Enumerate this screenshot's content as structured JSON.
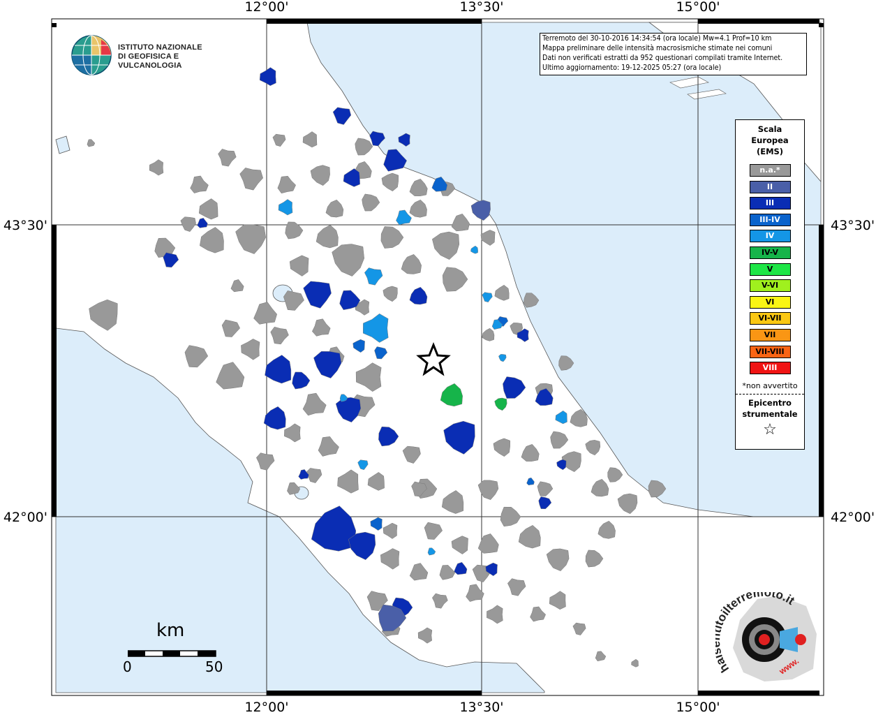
{
  "map": {
    "top_labels": [
      "12°00'",
      "13°30'",
      "15°00'"
    ],
    "bottom_labels": [
      "12°00'",
      "13°30'",
      "15°00'"
    ],
    "left_labels": [
      "43°30'",
      "42°00'"
    ],
    "right_labels": [
      "43°30'",
      "42°00'"
    ]
  },
  "logo": {
    "line1": "ISTITUTO NAZIONALE",
    "line2": "DI GEOFISICA E VULCANOLOGIA"
  },
  "info": {
    "line1": "Terremoto del 30-10-2016 14:34:54 (ora locale) Mw=4.1 Prof=10 km",
    "line2": "Mappa preliminare delle intensità macrosismiche stimate nei comuni",
    "line3": "Dati non verificati estratti da 952 questionari compilati tramite Internet.",
    "line4": "Ultimo aggiornamento: 19-12-2025 05:27 (ora locale)"
  },
  "legend": {
    "title1": "Scala",
    "title2": "Europea",
    "title3": "(EMS)",
    "items": [
      {
        "label": "n.a.*",
        "color": "#999999",
        "text_color": "#ffffff"
      },
      {
        "label": "II",
        "color": "#4a5fa8",
        "text_color": "#ffffff"
      },
      {
        "label": "III",
        "color": "#0a2db4",
        "text_color": "#ffffff"
      },
      {
        "label": "III-IV",
        "color": "#0a63cc",
        "text_color": "#ffffff"
      },
      {
        "label": "IV",
        "color": "#1496e6",
        "text_color": "#ffffff"
      },
      {
        "label": "IV-V",
        "color": "#16b44a",
        "text_color": "#000000"
      },
      {
        "label": "V",
        "color": "#1ee646",
        "text_color": "#000000"
      },
      {
        "label": "V-VI",
        "color": "#a0f01e",
        "text_color": "#000000"
      },
      {
        "label": "VI",
        "color": "#faf514",
        "text_color": "#000000"
      },
      {
        "label": "VI-VII",
        "color": "#fac814",
        "text_color": "#000000"
      },
      {
        "label": "VII",
        "color": "#fa9614",
        "text_color": "#000000"
      },
      {
        "label": "VII-VIII",
        "color": "#fa6414",
        "text_color": "#000000"
      },
      {
        "label": "VIII",
        "color": "#f01414",
        "text_color": "#ffffff"
      }
    ],
    "note": "*non avvertito",
    "epicenter1": "Epicentro",
    "epicenter2": "strumentale"
  },
  "scale": {
    "unit": "km",
    "min": "0",
    "max": "50"
  },
  "watermark": {
    "text": "haisentitoilterremoto.it",
    "sub": "www."
  },
  "colors": {
    "sea": "#dcedfa",
    "land": "#ffffff",
    "na": "#999999",
    "ii": "#4a5fa8",
    "iii": "#0a2db4",
    "iii_iv": "#0a63cc",
    "iv": "#1496e6",
    "iv_v": "#16b44a"
  }
}
